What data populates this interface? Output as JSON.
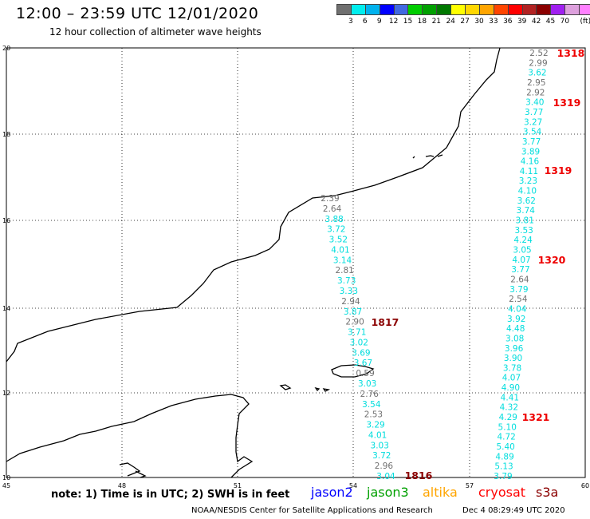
{
  "header": {
    "title": "12:00 – 23:59 UTC 12/01/2020",
    "subtitle": "12 hour collection of altimeter wave heights"
  },
  "colorbar": {
    "colors": [
      "#707070",
      "#00eeee",
      "#00b2ee",
      "#0000ff",
      "#4169e1",
      "#00cd00",
      "#00a000",
      "#007800",
      "#ffff00",
      "#ffd700",
      "#ffa500",
      "#ff4500",
      "#ff0000",
      "#b22222",
      "#8b0000",
      "#a020f0",
      "#dda0dd",
      "#ff80ff",
      "#000000"
    ],
    "labels": [
      "3",
      "6",
      "9",
      "12",
      "15",
      "18",
      "21",
      "24",
      "27",
      "30",
      "33",
      "36",
      "39",
      "42",
      "45",
      "70",
      "(ft)"
    ]
  },
  "map": {
    "lat_labels": [
      "20",
      "18",
      "16",
      "14",
      "12",
      "10"
    ],
    "lon_labels": [
      "45",
      "48",
      "51",
      "54",
      "57",
      "60"
    ],
    "tracks": [
      {
        "points": [
          {
            "value": "2.39",
            "color": "#707070"
          },
          {
            "value": "2.64",
            "color": "#707070"
          },
          {
            "value": "3.88",
            "color": "#00dddd"
          },
          {
            "value": "3.72",
            "color": "#00dddd"
          },
          {
            "value": "3.52",
            "color": "#00dddd"
          },
          {
            "value": "4.01",
            "color": "#00dddd"
          },
          {
            "value": "3.14",
            "color": "#00dddd"
          },
          {
            "value": "2.81",
            "color": "#707070"
          },
          {
            "value": "3.73",
            "color": "#00dddd"
          },
          {
            "value": "3.33",
            "color": "#00dddd"
          },
          {
            "value": "2.94",
            "color": "#707070"
          },
          {
            "value": "3.87",
            "color": "#00dddd"
          },
          {
            "value": "2.90",
            "color": "#707070"
          },
          {
            "value": "3.71",
            "color": "#00dddd"
          },
          {
            "value": "3.02",
            "color": "#00dddd"
          },
          {
            "value": "3.69",
            "color": "#00dddd"
          },
          {
            "value": "3.67",
            "color": "#00dddd"
          },
          {
            "value": "0.59",
            "color": "#707070"
          },
          {
            "value": "3.03",
            "color": "#00dddd"
          },
          {
            "value": "2.76",
            "color": "#707070"
          },
          {
            "value": "3.54",
            "color": "#00dddd"
          },
          {
            "value": "2.53",
            "color": "#707070"
          },
          {
            "value": "3.29",
            "color": "#00dddd"
          },
          {
            "value": "4.01",
            "color": "#00dddd"
          },
          {
            "value": "3.03",
            "color": "#00dddd"
          },
          {
            "value": "3.72",
            "color": "#00dddd"
          },
          {
            "value": "2.96",
            "color": "#707070"
          },
          {
            "value": "3.04",
            "color": "#00dddd"
          }
        ]
      },
      {
        "points": [
          {
            "value": "2.52",
            "color": "#707070"
          },
          {
            "value": "2.99",
            "color": "#707070"
          },
          {
            "value": "3.62",
            "color": "#00dddd"
          },
          {
            "value": "2.95",
            "color": "#707070"
          },
          {
            "value": "2.92",
            "color": "#707070"
          },
          {
            "value": "3.40",
            "color": "#00dddd"
          },
          {
            "value": "3.77",
            "color": "#00dddd"
          },
          {
            "value": "3.27",
            "color": "#00dddd"
          },
          {
            "value": "3.54",
            "color": "#00dddd"
          },
          {
            "value": "3.77",
            "color": "#00dddd"
          },
          {
            "value": "3.89",
            "color": "#00dddd"
          },
          {
            "value": "4.16",
            "color": "#00dddd"
          },
          {
            "value": "4.11",
            "color": "#00dddd"
          },
          {
            "value": "3.23",
            "color": "#00dddd"
          },
          {
            "value": "4.10",
            "color": "#00dddd"
          },
          {
            "value": "3.62",
            "color": "#00dddd"
          },
          {
            "value": "3.74",
            "color": "#00dddd"
          },
          {
            "value": "3.81",
            "color": "#00dddd"
          },
          {
            "value": "3.53",
            "color": "#00dddd"
          },
          {
            "value": "4.24",
            "color": "#00dddd"
          },
          {
            "value": "3.05",
            "color": "#00dddd"
          },
          {
            "value": "4.07",
            "color": "#00dddd"
          },
          {
            "value": "3.77",
            "color": "#00dddd"
          },
          {
            "value": "2.64",
            "color": "#707070"
          },
          {
            "value": "3.79",
            "color": "#00dddd"
          },
          {
            "value": "2.54",
            "color": "#707070"
          },
          {
            "value": "4.04",
            "color": "#00dddd"
          },
          {
            "value": "3.92",
            "color": "#00dddd"
          },
          {
            "value": "4.48",
            "color": "#00dddd"
          },
          {
            "value": "3.08",
            "color": "#00dddd"
          },
          {
            "value": "3.96",
            "color": "#00dddd"
          },
          {
            "value": "3.90",
            "color": "#00dddd"
          },
          {
            "value": "3.78",
            "color": "#00dddd"
          },
          {
            "value": "4.07",
            "color": "#00dddd"
          },
          {
            "value": "4.90",
            "color": "#00dddd"
          },
          {
            "value": "4.41",
            "color": "#00dddd"
          },
          {
            "value": "4.32",
            "color": "#00dddd"
          },
          {
            "value": "4.29",
            "color": "#00dddd"
          },
          {
            "value": "5.10",
            "color": "#00dddd"
          },
          {
            "value": "4.72",
            "color": "#00dddd"
          },
          {
            "value": "5.40",
            "color": "#00dddd"
          },
          {
            "value": "4.89",
            "color": "#00dddd"
          },
          {
            "value": "5.13",
            "color": "#00dddd"
          },
          {
            "value": "3.79",
            "color": "#00dddd"
          }
        ]
      }
    ],
    "times": [
      {
        "label": "1318",
        "color": "#ee0000"
      },
      {
        "label": "1319",
        "color": "#ee0000"
      },
      {
        "label": "1319",
        "color": "#ee0000"
      },
      {
        "label": "1320",
        "color": "#ee0000"
      },
      {
        "label": "1321",
        "color": "#ee0000"
      },
      {
        "label": "1817",
        "color": "#8b0000"
      },
      {
        "label": "1816",
        "color": "#8b0000"
      }
    ]
  },
  "footer": {
    "note": "note:  1) Time is in UTC;  2) SWH is in feet",
    "satellites": [
      {
        "name": "jason2",
        "color": "#0000ff"
      },
      {
        "name": "jason3",
        "color": "#00a000"
      },
      {
        "name": "altika",
        "color": "#ffa500"
      },
      {
        "name": "cryosat",
        "color": "#ff0000"
      },
      {
        "name": "s3a",
        "color": "#8b0000"
      }
    ],
    "credit": "NOAA/NESDIS Center for Satellite Applications and Research",
    "timestamp": "Dec  4 08:29:49 UTC 2020"
  }
}
